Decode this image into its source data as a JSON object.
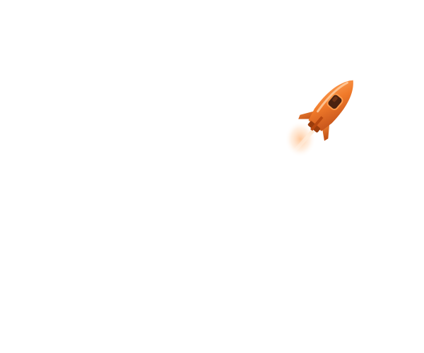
{
  "background_color": "#ffffff",
  "illustration": {
    "icon": "rocket-icon",
    "colors": {
      "body": "#f07a2a",
      "body_shade": "#c2501a",
      "body_highlight": "#ffb070",
      "window": "#4a2210",
      "flame": "#ffd8b0"
    }
  }
}
